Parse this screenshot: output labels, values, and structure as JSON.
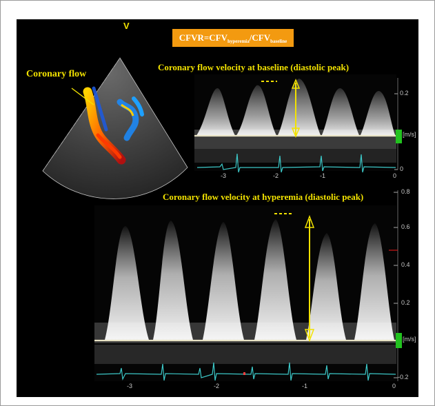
{
  "formula": {
    "prefix": "CFVR=CFV",
    "sub1": "hyperemia",
    "mid": "/CFV",
    "sub2": "baseline"
  },
  "labels": {
    "coronary_flow": "Coronary  flow",
    "probe_marker": "V",
    "baseline_title": "Coronary flow velocity at baseline (diastolic peak)",
    "hyperemia_title": "Coronary flow velocity at hyperemia (diastolic peak)"
  },
  "baseline_scale": {
    "upper_tick": "0.2",
    "unit": "[m/s]",
    "time_ticks": [
      "-3",
      "-2",
      "-1",
      "0"
    ],
    "bottom_tick": "0"
  },
  "hyperemia_scale": {
    "velocity_ticks": [
      "0.8",
      "0.6",
      "0.4",
      "0.2",
      "-0.2"
    ],
    "unit": "[m/s]",
    "time_ticks": [
      "-3",
      "-2",
      "-1",
      "0"
    ]
  },
  "colors": {
    "annotation": "#f2e200",
    "formula_bg": "#f39a10",
    "baseline_line": "#e8e2c4",
    "ecg": "#3cc8c8",
    "scale_marker": "#22c21f"
  }
}
